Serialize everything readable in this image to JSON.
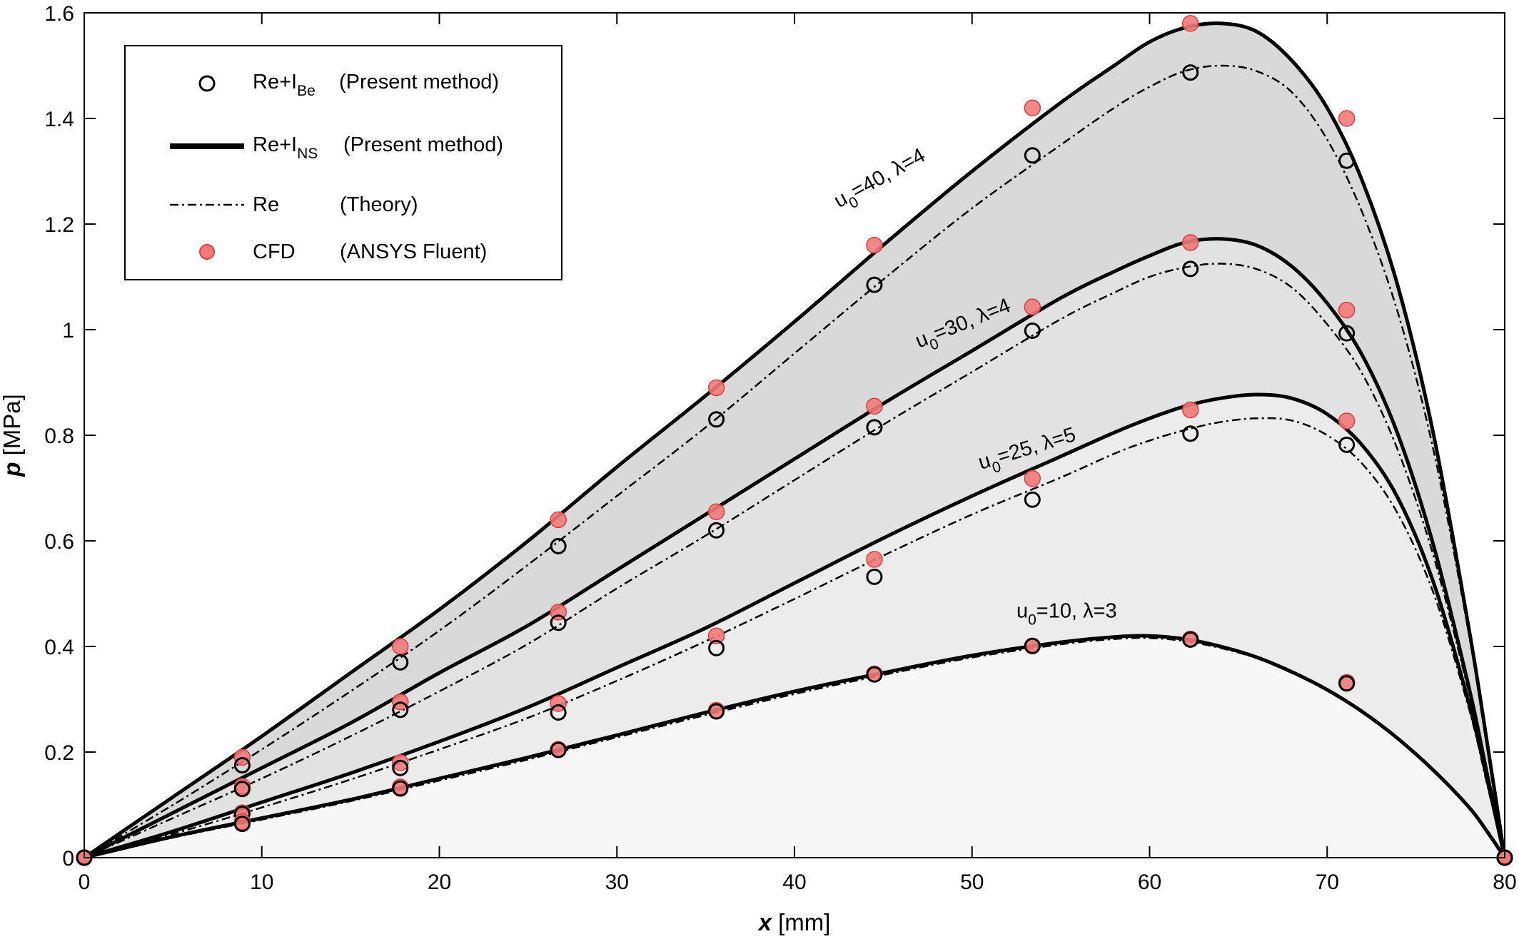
{
  "chart_data": {
    "type": "line",
    "xlabel": {
      "symbol": "x",
      "unit": "[mm]"
    },
    "ylabel": {
      "symbol": "p",
      "unit": "[MPa]"
    },
    "xlim": [
      0,
      80
    ],
    "ylim": [
      0,
      1.6
    ],
    "xticks": [
      "0",
      "10",
      "20",
      "30",
      "40",
      "50",
      "60",
      "70",
      "80"
    ],
    "yticks": [
      "0",
      "0.2",
      "0.4",
      "0.6",
      "0.8",
      "1",
      "1.2",
      "1.4",
      "1.6"
    ],
    "legend": {
      "position": "top-left",
      "entries": [
        {
          "marker": "open-circle",
          "base": "Re+I",
          "sub": "Be",
          "desc": "(Present method)"
        },
        {
          "marker": "thick-line",
          "base": "Re+I",
          "sub": "NS",
          "desc": "(Present method)"
        },
        {
          "marker": "dash-dot-line",
          "base": "Re",
          "sub": "",
          "desc": "(Theory)"
        },
        {
          "marker": "red-filled-circle",
          "base": "CFD",
          "sub": "",
          "desc": "(ANSYS Fluent)"
        }
      ]
    },
    "fill_colors": [
      "#d9d9d9",
      "#e2e2e2",
      "#ececec",
      "#f7f7f7"
    ],
    "cfd_color": "#f07a7a",
    "cases": [
      {
        "label": {
          "pre": "u",
          "sub": "0",
          "rest": "=40, λ=4"
        },
        "label_pos": {
          "x": 42.5,
          "y": 1.23
        },
        "label_angle": -29,
        "ns": [
          [
            0,
            0
          ],
          [
            5,
            0.115
          ],
          [
            10,
            0.23
          ],
          [
            15,
            0.35
          ],
          [
            20,
            0.47
          ],
          [
            25,
            0.6
          ],
          [
            30,
            0.74
          ],
          [
            35,
            0.875
          ],
          [
            40,
            1.015
          ],
          [
            45,
            1.16
          ],
          [
            50,
            1.3
          ],
          [
            55,
            1.43
          ],
          [
            58,
            1.5
          ],
          [
            60,
            1.545
          ],
          [
            62,
            1.572
          ],
          [
            64,
            1.58
          ],
          [
            66,
            1.565
          ],
          [
            68,
            1.51
          ],
          [
            70,
            1.42
          ],
          [
            72,
            1.28
          ],
          [
            74,
            1.08
          ],
          [
            76,
            0.8
          ],
          [
            78,
            0.43
          ],
          [
            79,
            0.22
          ],
          [
            80,
            0
          ]
        ],
        "re": [
          [
            0,
            0
          ],
          [
            5,
            0.1
          ],
          [
            10,
            0.205
          ],
          [
            15,
            0.315
          ],
          [
            20,
            0.43
          ],
          [
            25,
            0.555
          ],
          [
            30,
            0.685
          ],
          [
            35,
            0.815
          ],
          [
            40,
            0.955
          ],
          [
            45,
            1.095
          ],
          [
            50,
            1.23
          ],
          [
            55,
            1.35
          ],
          [
            58,
            1.42
          ],
          [
            60,
            1.46
          ],
          [
            62,
            1.49
          ],
          [
            64,
            1.5
          ],
          [
            66,
            1.49
          ],
          [
            68,
            1.45
          ],
          [
            70,
            1.36
          ],
          [
            72,
            1.22
          ],
          [
            74,
            1.03
          ],
          [
            76,
            0.77
          ],
          [
            78,
            0.42
          ],
          [
            79,
            0.21
          ],
          [
            80,
            0
          ]
        ],
        "be_pts": [
          [
            8.9,
            0.175
          ],
          [
            17.8,
            0.37
          ],
          [
            26.7,
            0.59
          ],
          [
            35.6,
            0.83
          ],
          [
            44.5,
            1.085
          ],
          [
            53.4,
            1.33
          ],
          [
            62.3,
            1.487
          ],
          [
            71.1,
            1.32
          ]
        ],
        "cfd_pts": [
          [
            8.9,
            0.19
          ],
          [
            17.8,
            0.4
          ],
          [
            26.7,
            0.64
          ],
          [
            35.6,
            0.89
          ],
          [
            44.5,
            1.16
          ],
          [
            53.4,
            1.42
          ],
          [
            62.3,
            1.58
          ],
          [
            71.1,
            1.4
          ]
        ]
      },
      {
        "label": {
          "pre": "u",
          "sub": "0",
          "rest": "=30, λ=4"
        },
        "label_pos": {
          "x": 47,
          "y": 0.965
        },
        "label_angle": -22,
        "ns": [
          [
            0,
            0
          ],
          [
            5,
            0.085
          ],
          [
            10,
            0.17
          ],
          [
            15,
            0.255
          ],
          [
            20,
            0.35
          ],
          [
            25,
            0.44
          ],
          [
            30,
            0.545
          ],
          [
            35,
            0.65
          ],
          [
            40,
            0.755
          ],
          [
            45,
            0.86
          ],
          [
            50,
            0.96
          ],
          [
            55,
            1.06
          ],
          [
            58,
            1.11
          ],
          [
            60,
            1.14
          ],
          [
            62,
            1.165
          ],
          [
            64,
            1.172
          ],
          [
            66,
            1.16
          ],
          [
            68,
            1.12
          ],
          [
            70,
            1.05
          ],
          [
            72,
            0.95
          ],
          [
            74,
            0.8
          ],
          [
            76,
            0.59
          ],
          [
            78,
            0.32
          ],
          [
            79,
            0.16
          ],
          [
            80,
            0
          ]
        ],
        "re": [
          [
            0,
            0
          ],
          [
            5,
            0.075
          ],
          [
            10,
            0.15
          ],
          [
            15,
            0.23
          ],
          [
            20,
            0.315
          ],
          [
            25,
            0.405
          ],
          [
            30,
            0.51
          ],
          [
            35,
            0.61
          ],
          [
            40,
            0.715
          ],
          [
            45,
            0.82
          ],
          [
            50,
            0.92
          ],
          [
            55,
            1.02
          ],
          [
            58,
            1.07
          ],
          [
            60,
            1.1
          ],
          [
            62,
            1.118
          ],
          [
            64,
            1.125
          ],
          [
            66,
            1.115
          ],
          [
            68,
            1.08
          ],
          [
            70,
            1.01
          ],
          [
            72,
            0.915
          ],
          [
            74,
            0.77
          ],
          [
            76,
            0.57
          ],
          [
            78,
            0.31
          ],
          [
            79,
            0.16
          ],
          [
            80,
            0
          ]
        ],
        "be_pts": [
          [
            8.9,
            0.13
          ],
          [
            17.8,
            0.28
          ],
          [
            26.7,
            0.445
          ],
          [
            35.6,
            0.62
          ],
          [
            44.5,
            0.815
          ],
          [
            53.4,
            0.998
          ],
          [
            62.3,
            1.115
          ],
          [
            71.1,
            0.993
          ]
        ],
        "cfd_pts": [
          [
            8.9,
            0.135
          ],
          [
            17.8,
            0.295
          ],
          [
            26.7,
            0.465
          ],
          [
            35.6,
            0.655
          ],
          [
            44.5,
            0.855
          ],
          [
            53.4,
            1.043
          ],
          [
            62.3,
            1.165
          ],
          [
            71.1,
            1.037
          ]
        ]
      },
      {
        "label": {
          "pre": "u",
          "sub": "0",
          "rest": "=25, λ=5"
        },
        "label_pos": {
          "x": 50.5,
          "y": 0.735
        },
        "label_angle": -17,
        "ns": [
          [
            0,
            0
          ],
          [
            5,
            0.05
          ],
          [
            10,
            0.105
          ],
          [
            15,
            0.16
          ],
          [
            20,
            0.22
          ],
          [
            25,
            0.285
          ],
          [
            30,
            0.36
          ],
          [
            35,
            0.435
          ],
          [
            40,
            0.52
          ],
          [
            45,
            0.605
          ],
          [
            50,
            0.685
          ],
          [
            55,
            0.76
          ],
          [
            58,
            0.805
          ],
          [
            60,
            0.832
          ],
          [
            62,
            0.855
          ],
          [
            64,
            0.87
          ],
          [
            66,
            0.877
          ],
          [
            68,
            0.87
          ],
          [
            70,
            0.84
          ],
          [
            72,
            0.78
          ],
          [
            74,
            0.68
          ],
          [
            76,
            0.52
          ],
          [
            78,
            0.29
          ],
          [
            79,
            0.15
          ],
          [
            80,
            0
          ]
        ],
        "re": [
          [
            0,
            0
          ],
          [
            5,
            0.045
          ],
          [
            10,
            0.095
          ],
          [
            15,
            0.148
          ],
          [
            20,
            0.205
          ],
          [
            25,
            0.265
          ],
          [
            30,
            0.335
          ],
          [
            35,
            0.41
          ],
          [
            40,
            0.49
          ],
          [
            45,
            0.572
          ],
          [
            50,
            0.65
          ],
          [
            55,
            0.72
          ],
          [
            58,
            0.765
          ],
          [
            60,
            0.79
          ],
          [
            62,
            0.81
          ],
          [
            64,
            0.825
          ],
          [
            66,
            0.832
          ],
          [
            68,
            0.828
          ],
          [
            70,
            0.8
          ],
          [
            72,
            0.745
          ],
          [
            74,
            0.65
          ],
          [
            76,
            0.5
          ],
          [
            78,
            0.28
          ],
          [
            79,
            0.14
          ],
          [
            80,
            0
          ]
        ],
        "be_pts": [
          [
            8.9,
            0.083
          ],
          [
            17.8,
            0.17
          ],
          [
            26.7,
            0.275
          ],
          [
            35.6,
            0.397
          ],
          [
            44.5,
            0.532
          ],
          [
            53.4,
            0.678
          ],
          [
            62.3,
            0.803
          ],
          [
            71.1,
            0.782
          ]
        ],
        "cfd_pts": [
          [
            8.9,
            0.085
          ],
          [
            17.8,
            0.18
          ],
          [
            26.7,
            0.292
          ],
          [
            35.6,
            0.42
          ],
          [
            44.5,
            0.565
          ],
          [
            53.4,
            0.718
          ],
          [
            62.3,
            0.848
          ],
          [
            71.1,
            0.827
          ]
        ]
      },
      {
        "label": {
          "pre": "u",
          "sub": "0",
          "rest": "=10, λ=3"
        },
        "label_pos": {
          "x": 52.5,
          "y": 0.455
        },
        "label_angle": 0,
        "ns": [
          [
            0,
            0
          ],
          [
            5,
            0.04
          ],
          [
            10,
            0.075
          ],
          [
            15,
            0.11
          ],
          [
            20,
            0.15
          ],
          [
            25,
            0.19
          ],
          [
            30,
            0.232
          ],
          [
            35,
            0.275
          ],
          [
            40,
            0.315
          ],
          [
            45,
            0.35
          ],
          [
            50,
            0.383
          ],
          [
            55,
            0.408
          ],
          [
            58,
            0.418
          ],
          [
            60,
            0.42
          ],
          [
            62,
            0.414
          ],
          [
            64,
            0.4
          ],
          [
            66,
            0.38
          ],
          [
            68,
            0.352
          ],
          [
            70,
            0.318
          ],
          [
            72,
            0.276
          ],
          [
            74,
            0.225
          ],
          [
            76,
            0.165
          ],
          [
            78,
            0.095
          ],
          [
            79,
            0.05
          ],
          [
            80,
            0
          ]
        ],
        "re": [
          [
            0,
            0
          ],
          [
            5,
            0.038
          ],
          [
            10,
            0.072
          ],
          [
            15,
            0.107
          ],
          [
            20,
            0.146
          ],
          [
            25,
            0.186
          ],
          [
            30,
            0.228
          ],
          [
            35,
            0.27
          ],
          [
            40,
            0.31
          ],
          [
            45,
            0.346
          ],
          [
            50,
            0.379
          ],
          [
            55,
            0.404
          ],
          [
            58,
            0.414
          ],
          [
            60,
            0.416
          ],
          [
            62,
            0.41
          ],
          [
            64,
            0.397
          ],
          [
            66,
            0.378
          ],
          [
            68,
            0.35
          ],
          [
            70,
            0.316
          ],
          [
            72,
            0.274
          ],
          [
            74,
            0.223
          ],
          [
            76,
            0.163
          ],
          [
            78,
            0.094
          ],
          [
            79,
            0.049
          ],
          [
            80,
            0
          ]
        ],
        "be_pts": [
          [
            8.9,
            0.064
          ],
          [
            17.8,
            0.131
          ],
          [
            26.7,
            0.204
          ],
          [
            35.6,
            0.277
          ],
          [
            44.5,
            0.347
          ],
          [
            53.4,
            0.401
          ],
          [
            62.3,
            0.413
          ],
          [
            71.1,
            0.33
          ]
        ],
        "cfd_pts": [
          [
            8.9,
            0.068
          ],
          [
            17.8,
            0.134
          ],
          [
            26.7,
            0.205
          ],
          [
            35.6,
            0.279
          ],
          [
            44.5,
            0.348
          ],
          [
            53.4,
            0.401
          ],
          [
            62.3,
            0.414
          ],
          [
            71.1,
            0.332
          ]
        ]
      }
    ],
    "common_points": [
      [
        0,
        0
      ],
      [
        80,
        0
      ]
    ]
  }
}
